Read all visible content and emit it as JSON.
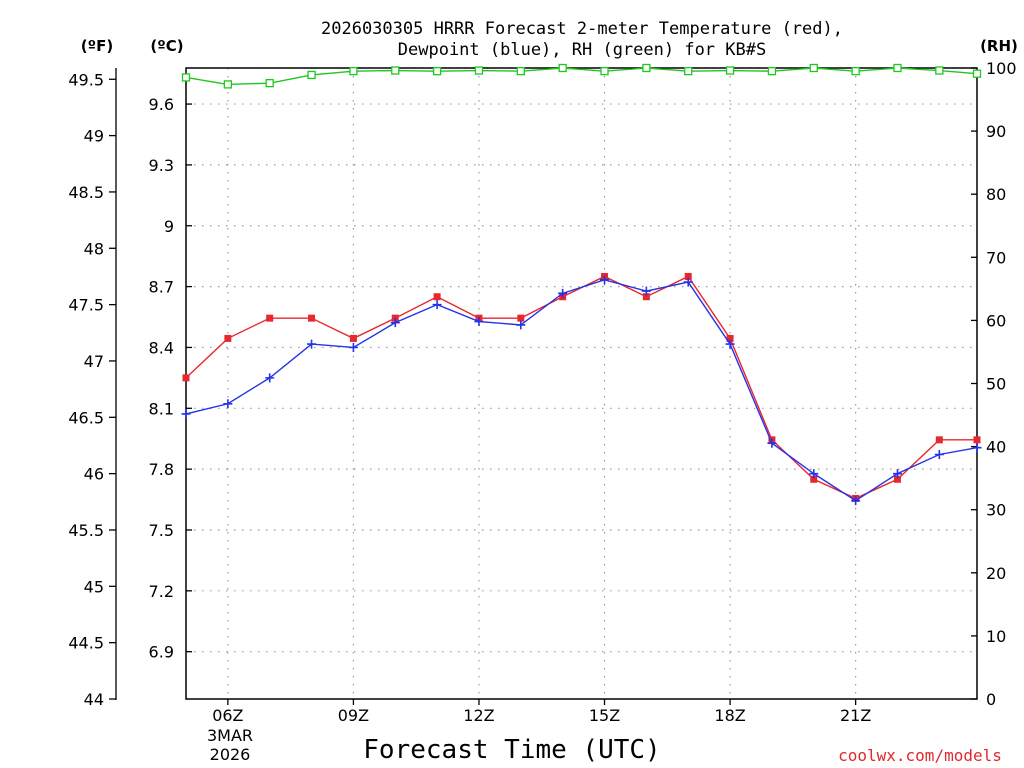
{
  "chart_data": {
    "type": "line",
    "title_line1": "2026030305 HRRR Forecast 2-meter Temperature (red),",
    "title_line2": "Dewpoint (blue), RH (green) for KB#S",
    "xlabel": "Forecast Time (UTC)",
    "credit": "coolwx.com/models",
    "unit_f": "(ºF)",
    "unit_c": "(ºC)",
    "unit_rh": "(RH)",
    "date_line1": "3MAR",
    "date_line2": "2026",
    "x_range": [
      5,
      23.9
    ],
    "x_ticks": [
      {
        "x": 6,
        "label": "06Z"
      },
      {
        "x": 9,
        "label": "09Z"
      },
      {
        "x": 12,
        "label": "12Z"
      },
      {
        "x": 15,
        "label": "15Z"
      },
      {
        "x": 18,
        "label": "18Z"
      },
      {
        "x": 21,
        "label": "21Z"
      }
    ],
    "f_range": [
      44,
      49.6
    ],
    "f_ticks": [
      "44",
      "44.5",
      "45",
      "45.5",
      "46",
      "46.5",
      "47",
      "47.5",
      "48",
      "48.5",
      "49",
      "49.5"
    ],
    "c_ticks": [
      "6.9",
      "7.2",
      "7.5",
      "7.8",
      "8.1",
      "8.4",
      "8.7",
      "9",
      "9.3",
      "9.6"
    ],
    "rh_range": [
      0,
      100
    ],
    "rh_ticks": [
      "0",
      "10",
      "20",
      "30",
      "40",
      "50",
      "60",
      "70",
      "80",
      "90",
      "100"
    ],
    "colors": {
      "temperature": "#e8282f",
      "dewpoint": "#2433e8",
      "rh": "#1ec81e",
      "grid": "#9a9a9a"
    },
    "series": [
      {
        "name": "Temperature (red)",
        "axis": "F",
        "marker": "filled-square",
        "x": [
          5,
          6,
          7,
          8,
          9,
          10,
          11,
          12,
          13,
          14,
          15,
          16,
          17,
          18,
          19,
          20,
          21,
          22,
          23,
          23.9
        ],
        "values": [
          46.85,
          47.2,
          47.38,
          47.38,
          47.2,
          47.38,
          47.57,
          47.38,
          47.38,
          47.57,
          47.75,
          47.57,
          47.75,
          47.2,
          46.3,
          45.95,
          45.78,
          45.95,
          46.3,
          46.3
        ]
      },
      {
        "name": "Dewpoint (blue)",
        "axis": "F",
        "marker": "plus",
        "x": [
          5,
          6,
          7,
          8,
          9,
          10,
          11,
          12,
          13,
          14,
          15,
          16,
          17,
          18,
          19,
          20,
          21,
          22,
          23,
          23.9
        ],
        "values": [
          46.53,
          46.62,
          46.85,
          47.15,
          47.12,
          47.34,
          47.5,
          47.35,
          47.32,
          47.6,
          47.72,
          47.62,
          47.7,
          47.15,
          46.27,
          46.0,
          45.76,
          46.0,
          46.17,
          46.23
        ]
      },
      {
        "name": "RH (green)",
        "axis": "RH",
        "marker": "open-square",
        "x": [
          5,
          6,
          7,
          8,
          9,
          10,
          11,
          12,
          13,
          14,
          15,
          16,
          17,
          18,
          19,
          20,
          21,
          22,
          23,
          23.9
        ],
        "values": [
          98.5,
          97.4,
          97.6,
          98.9,
          99.5,
          99.6,
          99.5,
          99.6,
          99.5,
          100,
          99.5,
          100,
          99.5,
          99.6,
          99.5,
          100,
          99.5,
          100,
          99.6,
          99.1
        ]
      }
    ]
  }
}
